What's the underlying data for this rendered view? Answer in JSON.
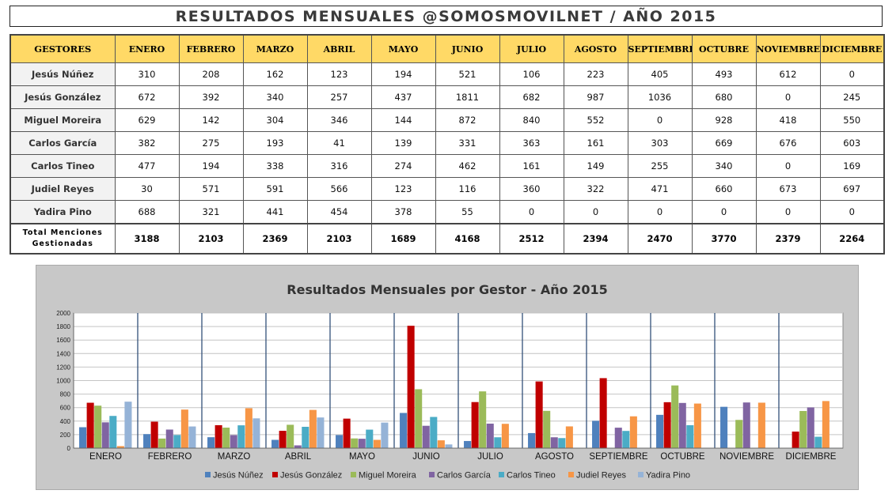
{
  "header": {
    "title": "RESULTADOS MENSUALES  @SOMOSMOVILNET  /  AÑO  2015"
  },
  "table": {
    "corner": "GESTORES",
    "months": [
      "ENERO",
      "FEBRERO",
      "MARZO",
      "ABRIL",
      "MAYO",
      "JUNIO",
      "JULIO",
      "AGOSTO",
      "SEPTIEMBRE",
      "OCTUBRE",
      "NOVIEMBRE",
      "DICIEMBRE"
    ],
    "rows": [
      {
        "name": "Jesús Núñez",
        "values": [
          310,
          208,
          162,
          123,
          194,
          521,
          106,
          223,
          405,
          493,
          612,
          0
        ]
      },
      {
        "name": "Jesús González",
        "values": [
          672,
          392,
          340,
          257,
          437,
          1811,
          682,
          987,
          1036,
          680,
          0,
          245
        ]
      },
      {
        "name": "Miguel Moreira",
        "values": [
          629,
          142,
          304,
          346,
          144,
          872,
          840,
          552,
          0,
          928,
          418,
          550
        ]
      },
      {
        "name": "Carlos García",
        "values": [
          382,
          275,
          193,
          41,
          139,
          331,
          363,
          161,
          303,
          669,
          676,
          603
        ]
      },
      {
        "name": "Carlos Tineo",
        "values": [
          477,
          194,
          338,
          316,
          274,
          462,
          161,
          149,
          255,
          340,
          0,
          169
        ]
      },
      {
        "name": "Judiel Reyes",
        "values": [
          30,
          571,
          591,
          566,
          123,
          116,
          360,
          322,
          471,
          660,
          673,
          697
        ]
      },
      {
        "name": "Yadira Pino",
        "values": [
          688,
          321,
          441,
          454,
          378,
          55,
          0,
          0,
          0,
          0,
          0,
          0
        ]
      }
    ],
    "total_label_line1": "Total Menciones",
    "total_label_line2": "Gestionadas",
    "totals": [
      3188,
      2103,
      2369,
      2103,
      1689,
      4168,
      2512,
      2394,
      2470,
      3770,
      2379,
      2264
    ]
  },
  "chart_data": {
    "type": "bar",
    "title": "Resultados Mensuales por Gestor - Año 2015",
    "categories": [
      "ENERO",
      "FEBRERO",
      "MARZO",
      "ABRIL",
      "MAYO",
      "JUNIO",
      "JULIO",
      "AGOSTO",
      "SEPTIEMBRE",
      "OCTUBRE",
      "NOVIEMBRE",
      "DICIEMBRE"
    ],
    "series": [
      {
        "name": "Jesús Núñez",
        "color": "#4f81bd",
        "values": [
          310,
          208,
          162,
          123,
          194,
          521,
          106,
          223,
          405,
          493,
          612,
          0
        ]
      },
      {
        "name": "Jesús González",
        "color": "#c00000",
        "values": [
          672,
          392,
          340,
          257,
          437,
          1811,
          682,
          987,
          1036,
          680,
          0,
          245
        ]
      },
      {
        "name": "Miguel Moreira",
        "color": "#9bbb59",
        "values": [
          629,
          142,
          304,
          346,
          144,
          872,
          840,
          552,
          0,
          928,
          418,
          550
        ]
      },
      {
        "name": "Carlos García",
        "color": "#8064a2",
        "values": [
          382,
          275,
          193,
          41,
          139,
          331,
          363,
          161,
          303,
          669,
          676,
          603
        ]
      },
      {
        "name": "Carlos Tineo",
        "color": "#4bacc6",
        "values": [
          477,
          194,
          338,
          316,
          274,
          462,
          161,
          149,
          255,
          340,
          0,
          169
        ]
      },
      {
        "name": "Judiel Reyes",
        "color": "#f79646",
        "values": [
          30,
          571,
          591,
          566,
          123,
          116,
          360,
          322,
          471,
          660,
          673,
          697
        ]
      },
      {
        "name": "Yadira Pino",
        "color": "#95b3d7",
        "values": [
          688,
          321,
          441,
          454,
          378,
          55,
          0,
          0,
          0,
          0,
          0,
          0
        ]
      }
    ],
    "xlabel": "",
    "ylabel": "",
    "ylim": [
      0,
      2000
    ],
    "yticks": [
      0,
      200,
      400,
      600,
      800,
      1000,
      1200,
      1400,
      1600,
      1800,
      2000
    ],
    "grid": true,
    "legend": "bottom"
  }
}
